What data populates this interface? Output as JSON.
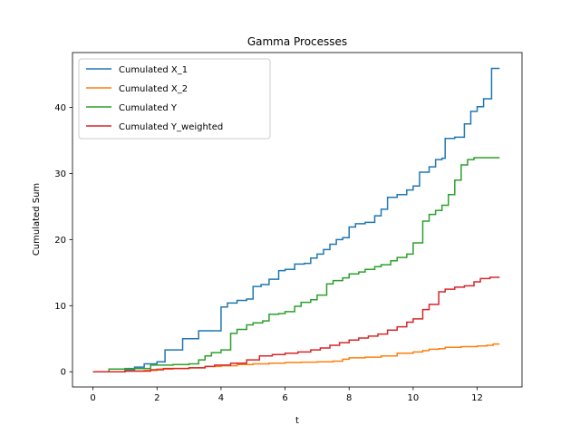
{
  "chart_data": {
    "type": "line",
    "step": "post",
    "title": "Gamma Processes",
    "xlabel": "t",
    "ylabel": "Cumulated Sum",
    "xlim": [
      -0.64,
      13.4
    ],
    "ylim": [
      -2.3,
      48.3
    ],
    "xticks": [
      0,
      2,
      4,
      6,
      8,
      10,
      12
    ],
    "yticks": [
      0,
      10,
      20,
      30,
      40
    ],
    "legend": "top-left",
    "grid": false,
    "series": [
      {
        "name": "Cumulated X_1",
        "color": "#1f77b4",
        "x": [
          0,
          1.0,
          1.3,
          1.6,
          2.0,
          2.25,
          2.8,
          3.3,
          4.0,
          4.2,
          4.5,
          4.8,
          5.0,
          5.25,
          5.5,
          5.8,
          6.0,
          6.3,
          6.6,
          6.8,
          7.0,
          7.2,
          7.4,
          7.6,
          7.8,
          8.0,
          8.2,
          8.5,
          8.8,
          9.0,
          9.2,
          9.5,
          9.8,
          10.0,
          10.2,
          10.5,
          10.7,
          10.9,
          11.0,
          11.3,
          11.6,
          11.8,
          12.0,
          12.2,
          12.45,
          12.7
        ],
        "values": [
          0,
          0.3,
          0.7,
          1.2,
          1.5,
          3.3,
          5.0,
          6.2,
          9.8,
          10.4,
          10.8,
          11.0,
          12.9,
          13.2,
          14.0,
          15.3,
          15.5,
          16.3,
          16.4,
          17.2,
          17.8,
          18.5,
          19.3,
          20.0,
          20.3,
          21.9,
          22.4,
          22.6,
          23.6,
          24.6,
          26.4,
          26.8,
          27.5,
          28.1,
          30.2,
          31.0,
          32.1,
          32.3,
          35.3,
          35.5,
          37.5,
          39.4,
          40.1,
          41.3,
          45.9,
          45.9
        ]
      },
      {
        "name": "Cumulated X_2",
        "color": "#ff7f0e",
        "x": [
          0,
          1.0,
          1.6,
          2.0,
          2.5,
          3.0,
          3.5,
          4.0,
          4.5,
          5.0,
          5.5,
          6.0,
          6.5,
          7.0,
          7.5,
          7.8,
          8.0,
          8.5,
          9.0,
          9.5,
          10.0,
          10.3,
          10.5,
          10.8,
          11.0,
          11.5,
          12.0,
          12.3,
          12.5,
          12.7
        ],
        "values": [
          0,
          0.1,
          0.2,
          0.4,
          0.5,
          0.6,
          0.8,
          0.9,
          1.1,
          1.2,
          1.3,
          1.4,
          1.45,
          1.5,
          1.6,
          1.9,
          2.1,
          2.2,
          2.4,
          2.8,
          3.0,
          3.2,
          3.4,
          3.5,
          3.7,
          3.8,
          3.9,
          4.0,
          4.2,
          4.2
        ]
      },
      {
        "name": "Cumulated Y",
        "color": "#2ca02c",
        "x": [
          0,
          0.5,
          1.0,
          1.8,
          2.5,
          3.0,
          3.3,
          3.5,
          3.7,
          4.0,
          4.3,
          4.5,
          4.8,
          5.0,
          5.3,
          5.5,
          5.8,
          6.0,
          6.3,
          6.5,
          6.8,
          7.0,
          7.3,
          7.5,
          7.8,
          8.0,
          8.3,
          8.5,
          8.8,
          9.0,
          9.3,
          9.5,
          9.8,
          10.0,
          10.3,
          10.5,
          10.7,
          10.9,
          11.1,
          11.3,
          11.5,
          11.7,
          11.9,
          12.1,
          12.3,
          12.5,
          12.7
        ],
        "values": [
          0,
          0.4,
          0.5,
          1.0,
          1.1,
          1.2,
          1.8,
          2.4,
          2.9,
          3.3,
          5.8,
          6.4,
          7.1,
          7.4,
          7.7,
          8.7,
          8.8,
          9.1,
          9.9,
          10.5,
          10.9,
          11.6,
          13.3,
          13.8,
          14.2,
          14.8,
          15.1,
          15.5,
          15.9,
          16.2,
          16.8,
          17.3,
          17.8,
          19.5,
          22.8,
          23.8,
          24.4,
          25.2,
          26.8,
          29.0,
          31.3,
          32.1,
          32.4,
          32.4,
          32.4,
          32.4,
          32.4
        ]
      },
      {
        "name": "Cumulated Y_weighted",
        "color": "#d62728",
        "x": [
          0,
          1.0,
          1.8,
          2.2,
          3.0,
          3.5,
          3.8,
          4.3,
          4.8,
          5.2,
          5.6,
          6.0,
          6.4,
          6.8,
          7.1,
          7.4,
          7.7,
          8.0,
          8.3,
          8.6,
          8.9,
          9.2,
          9.5,
          9.8,
          10.0,
          10.3,
          10.5,
          10.8,
          11.0,
          11.3,
          11.6,
          11.9,
          12.1,
          12.4,
          12.7
        ],
        "values": [
          0,
          0.1,
          0.3,
          0.5,
          0.6,
          0.8,
          1.0,
          1.3,
          1.8,
          2.4,
          2.6,
          2.8,
          3.0,
          3.3,
          3.6,
          4.0,
          4.4,
          4.8,
          5.1,
          5.4,
          5.7,
          6.3,
          6.8,
          7.5,
          8.0,
          9.4,
          10.2,
          12.1,
          12.5,
          12.8,
          13.0,
          13.6,
          14.1,
          14.3,
          14.3
        ]
      }
    ]
  }
}
